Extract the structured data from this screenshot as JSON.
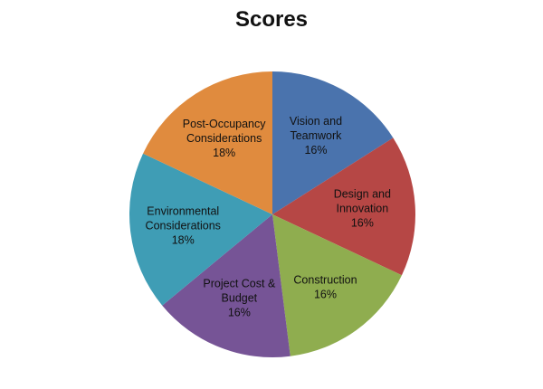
{
  "chart_data": {
    "type": "pie",
    "title": "Scores",
    "start_angle_deg": 0,
    "direction": "clockwise",
    "slices": [
      {
        "label_lines": [
          "Vision and",
          "Teamwork"
        ],
        "percent_label": "16%",
        "value": 16,
        "color": "#4a73ad"
      },
      {
        "label_lines": [
          "Design and",
          "Innovation"
        ],
        "percent_label": "16%",
        "value": 16,
        "color": "#b64745"
      },
      {
        "label_lines": [
          "Construction"
        ],
        "percent_label": "16%",
        "value": 16,
        "color": "#8fad4f"
      },
      {
        "label_lines": [
          "Project Cost &",
          "Budget"
        ],
        "percent_label": "16%",
        "value": 16,
        "color": "#765496"
      },
      {
        "label_lines": [
          "Environmental",
          "Considerations"
        ],
        "percent_label": "18%",
        "value": 18,
        "color": "#3f9db5"
      },
      {
        "label_lines": [
          "Post-Occupancy",
          "Considerations"
        ],
        "percent_label": "18%",
        "value": 18,
        "color": "#e08b3e"
      }
    ],
    "legend": "none",
    "data_labels": "inside"
  }
}
